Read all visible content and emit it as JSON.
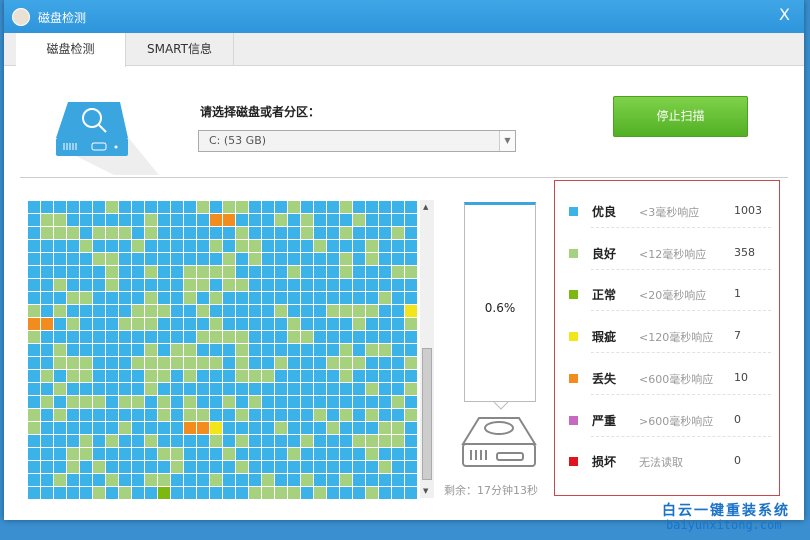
{
  "window": {
    "title": "磁盘检测",
    "close_label": "X"
  },
  "tabs": [
    {
      "label": "磁盘检测",
      "active": true
    },
    {
      "label": "SMART信息",
      "active": false
    }
  ],
  "select": {
    "label": "请选择磁盘或者分区：",
    "value": "C:  (53 GB)"
  },
  "stop_button": "停止扫描",
  "progress": {
    "percent_label": "0.6%",
    "percent": 0.6,
    "remaining": "剩余：17分钟13秒"
  },
  "legend": [
    {
      "name": "优良",
      "desc": "<3毫秒响应",
      "count": "1003",
      "color": "#3bb3e8"
    },
    {
      "name": "良好",
      "desc": "<12毫秒响应",
      "count": "358",
      "color": "#a6d17e"
    },
    {
      "name": "正常",
      "desc": "<20毫秒响应",
      "count": "1",
      "color": "#7cb80f"
    },
    {
      "name": "瑕疵",
      "desc": "<120毫秒响应",
      "count": "7",
      "color": "#f2e61a"
    },
    {
      "name": "丢失",
      "desc": "<600毫秒响应",
      "count": "10",
      "color": "#f28c1e"
    },
    {
      "name": "严重",
      "desc": ">600毫秒响应",
      "count": "0",
      "color": "#c868c0"
    },
    {
      "name": "损坏",
      "desc": "无法读取",
      "count": "0",
      "color": "#e0141e"
    }
  ],
  "watermark": {
    "line1": "白云一键重装系统",
    "line2": "baiyunxitong.com"
  }
}
